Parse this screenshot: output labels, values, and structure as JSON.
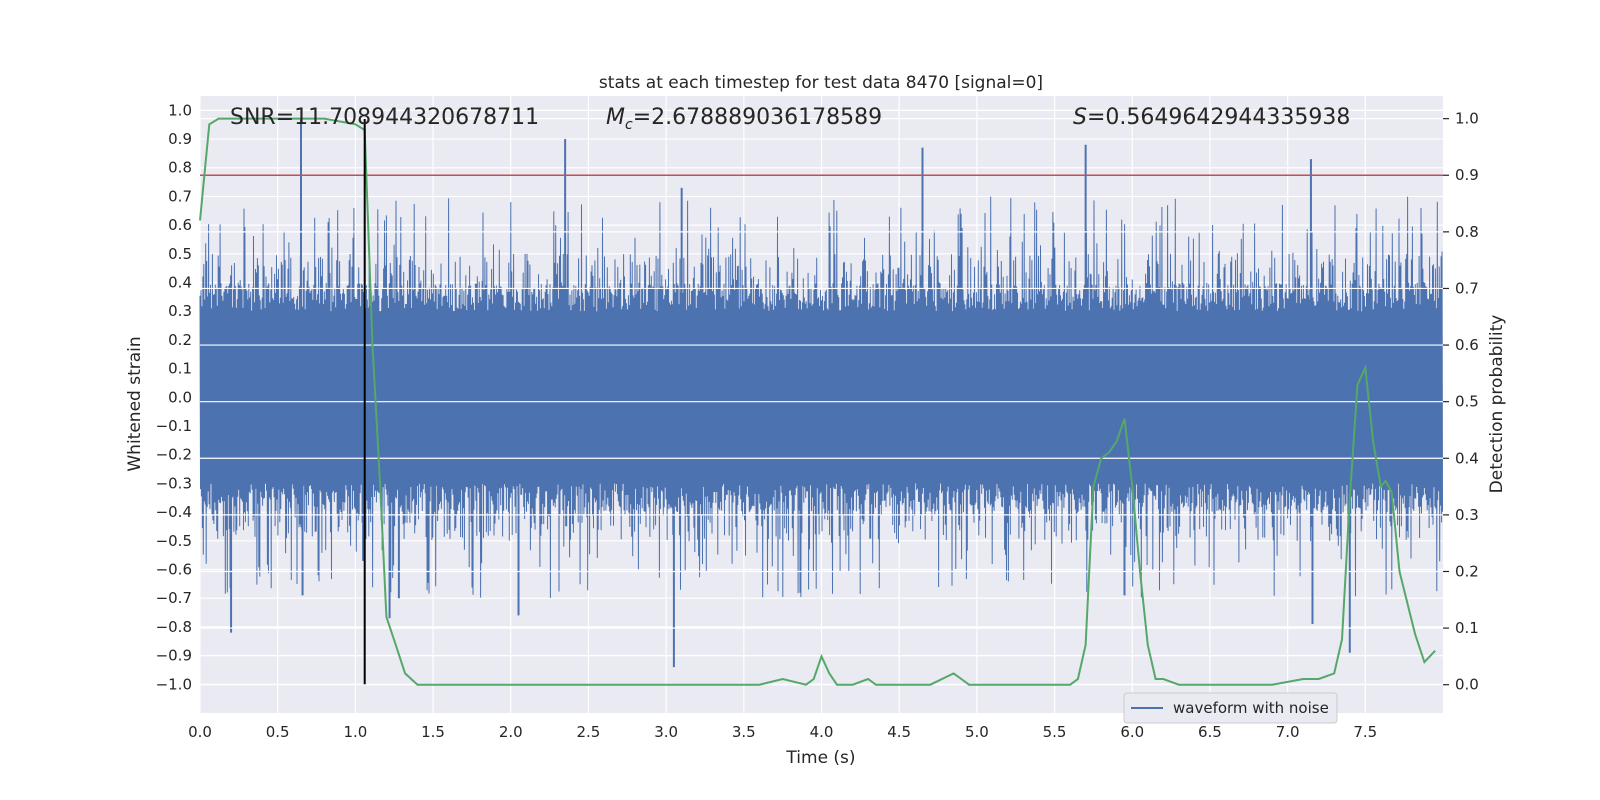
{
  "chart_data": {
    "type": "line",
    "title": "stats at each timestep for test data 8470 [signal=0]",
    "xlabel": "Time (s)",
    "ylabel": "Whitened strain",
    "y2label": "Detection probability",
    "xlim": [
      0.0,
      8.0
    ],
    "ylim": [
      -1.1,
      1.05
    ],
    "y2lim": [
      -0.05,
      1.04
    ],
    "xticks": [
      "0.0",
      "0.5",
      "1.0",
      "1.5",
      "2.0",
      "2.5",
      "3.0",
      "3.5",
      "4.0",
      "4.5",
      "5.0",
      "5.5",
      "6.0",
      "6.5",
      "7.0",
      "7.5"
    ],
    "yticks": [
      "1.0",
      "0.9",
      "0.8",
      "0.7",
      "0.6",
      "0.5",
      "0.4",
      "0.3",
      "0.2",
      "0.1",
      "0.0",
      "−0.1",
      "−0.2",
      "−0.3",
      "−0.4",
      "−0.5",
      "−0.6",
      "−0.7",
      "−0.8",
      "−0.9",
      "−1.0"
    ],
    "y2ticks": [
      "0.0",
      "0.1",
      "0.2",
      "0.3",
      "0.4",
      "0.5",
      "0.6",
      "0.7",
      "0.8",
      "0.9",
      "1.0"
    ],
    "annotations": {
      "snr": "SNR=11.708944320678711",
      "mc_symbol": "M",
      "mc_sub": "c",
      "mc_value": "=2.678889036178589",
      "s_symbol": "S",
      "s_value": "=0.5649642944335938"
    },
    "threshold": {
      "value": 0.9,
      "axis": "right",
      "color": "#c44e52"
    },
    "marker_line": {
      "x": 1.06,
      "y_from": -1.0,
      "y_to": 0.97,
      "color": "#000000"
    },
    "legend": {
      "label": "waveform with noise",
      "location": "bottom-right"
    },
    "series": [
      {
        "name": "waveform with noise",
        "axis": "left",
        "color": "#4c72b0",
        "style": "dense noise, typical amplitude about ±0.35",
        "spikes": [
          {
            "t": 0.2,
            "v": -0.82
          },
          {
            "t": 0.65,
            "v": 0.97
          },
          {
            "t": 0.66,
            "v": -0.69
          },
          {
            "t": 1.05,
            "v": -0.57
          },
          {
            "t": 1.22,
            "v": -0.77
          },
          {
            "t": 1.28,
            "v": -0.7
          },
          {
            "t": 2.05,
            "v": -0.76
          },
          {
            "t": 2.35,
            "v": 0.9
          },
          {
            "t": 3.05,
            "v": -0.94
          },
          {
            "t": 3.1,
            "v": 0.73
          },
          {
            "t": 4.65,
            "v": 0.87
          },
          {
            "t": 5.7,
            "v": 0.88
          },
          {
            "t": 5.95,
            "v": -0.69
          },
          {
            "t": 7.15,
            "v": 0.83
          },
          {
            "t": 7.16,
            "v": -0.79
          },
          {
            "t": 7.4,
            "v": -0.89
          }
        ]
      },
      {
        "name": "detection probability",
        "axis": "right",
        "color": "#55a868",
        "x": [
          0.0,
          0.06,
          0.12,
          0.2,
          0.4,
          0.6,
          0.8,
          1.0,
          1.06,
          1.11,
          1.16,
          1.2,
          1.26,
          1.32,
          1.4,
          1.6,
          1.9,
          2.1,
          2.3,
          2.6,
          3.0,
          3.3,
          3.6,
          3.75,
          3.9,
          3.95,
          4.0,
          4.05,
          4.1,
          4.2,
          4.3,
          4.35,
          4.45,
          4.7,
          4.85,
          4.9,
          4.95,
          5.0,
          5.1,
          5.2,
          5.4,
          5.6,
          5.65,
          5.7,
          5.75,
          5.8,
          5.85,
          5.9,
          5.95,
          6.0,
          6.05,
          6.1,
          6.15,
          6.2,
          6.3,
          6.4,
          6.6,
          6.9,
          7.1,
          7.2,
          7.3,
          7.35,
          7.4,
          7.45,
          7.5,
          7.55,
          7.6,
          7.63,
          7.67,
          7.72,
          7.82,
          7.88,
          7.95
        ],
        "values": [
          0.82,
          0.99,
          1.0,
          1.0,
          1.0,
          1.0,
          1.0,
          0.99,
          0.98,
          0.6,
          0.35,
          0.12,
          0.07,
          0.02,
          0.0,
          0.0,
          0.0,
          0.0,
          0.0,
          0.0,
          0.0,
          0.0,
          0.0,
          0.01,
          0.0,
          0.01,
          0.05,
          0.02,
          0.0,
          0.0,
          0.01,
          0.0,
          0.0,
          0.0,
          0.02,
          0.01,
          0.0,
          0.0,
          0.0,
          0.0,
          0.0,
          0.0,
          0.01,
          0.07,
          0.35,
          0.4,
          0.41,
          0.43,
          0.47,
          0.35,
          0.2,
          0.07,
          0.01,
          0.01,
          0.0,
          0.0,
          0.0,
          0.0,
          0.01,
          0.01,
          0.02,
          0.08,
          0.33,
          0.53,
          0.56,
          0.43,
          0.35,
          0.36,
          0.34,
          0.2,
          0.09,
          0.04,
          0.06
        ]
      }
    ]
  }
}
